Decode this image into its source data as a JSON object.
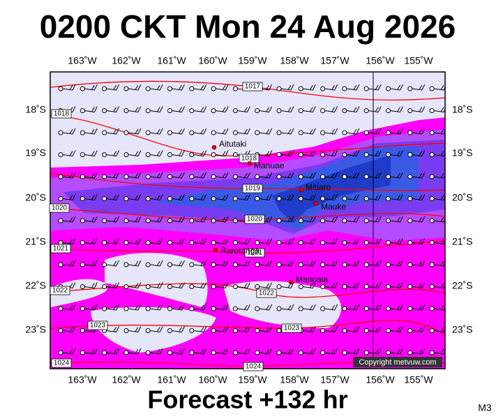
{
  "header": {
    "title": "0200 CKT Mon 24 Aug 2026"
  },
  "axes": {
    "lon": [
      "163˚W",
      "162˚W",
      "161˚W",
      "160˚W",
      "159˚W",
      "158˚W",
      "157˚W",
      "156˚W",
      "155˚W"
    ],
    "lat": [
      "18˚S",
      "19˚S",
      "20˚S",
      "21˚S",
      "22˚S",
      "23˚S"
    ]
  },
  "places": [
    "Aitutaki",
    "Manuae",
    "Mitiaro",
    "Mauke",
    "Rarotonga",
    "Mangaia"
  ],
  "isobar_labels": [
    "1017",
    "1018",
    "1018",
    "1019",
    "1020",
    "1020",
    "1021",
    "1021",
    "1022",
    "1022",
    "1023",
    "1023",
    "1024",
    "1024"
  ],
  "copyright": "Copyright metvuw.com",
  "footer": {
    "forecast": "Forecast +132 hr",
    "model": "M3"
  }
}
